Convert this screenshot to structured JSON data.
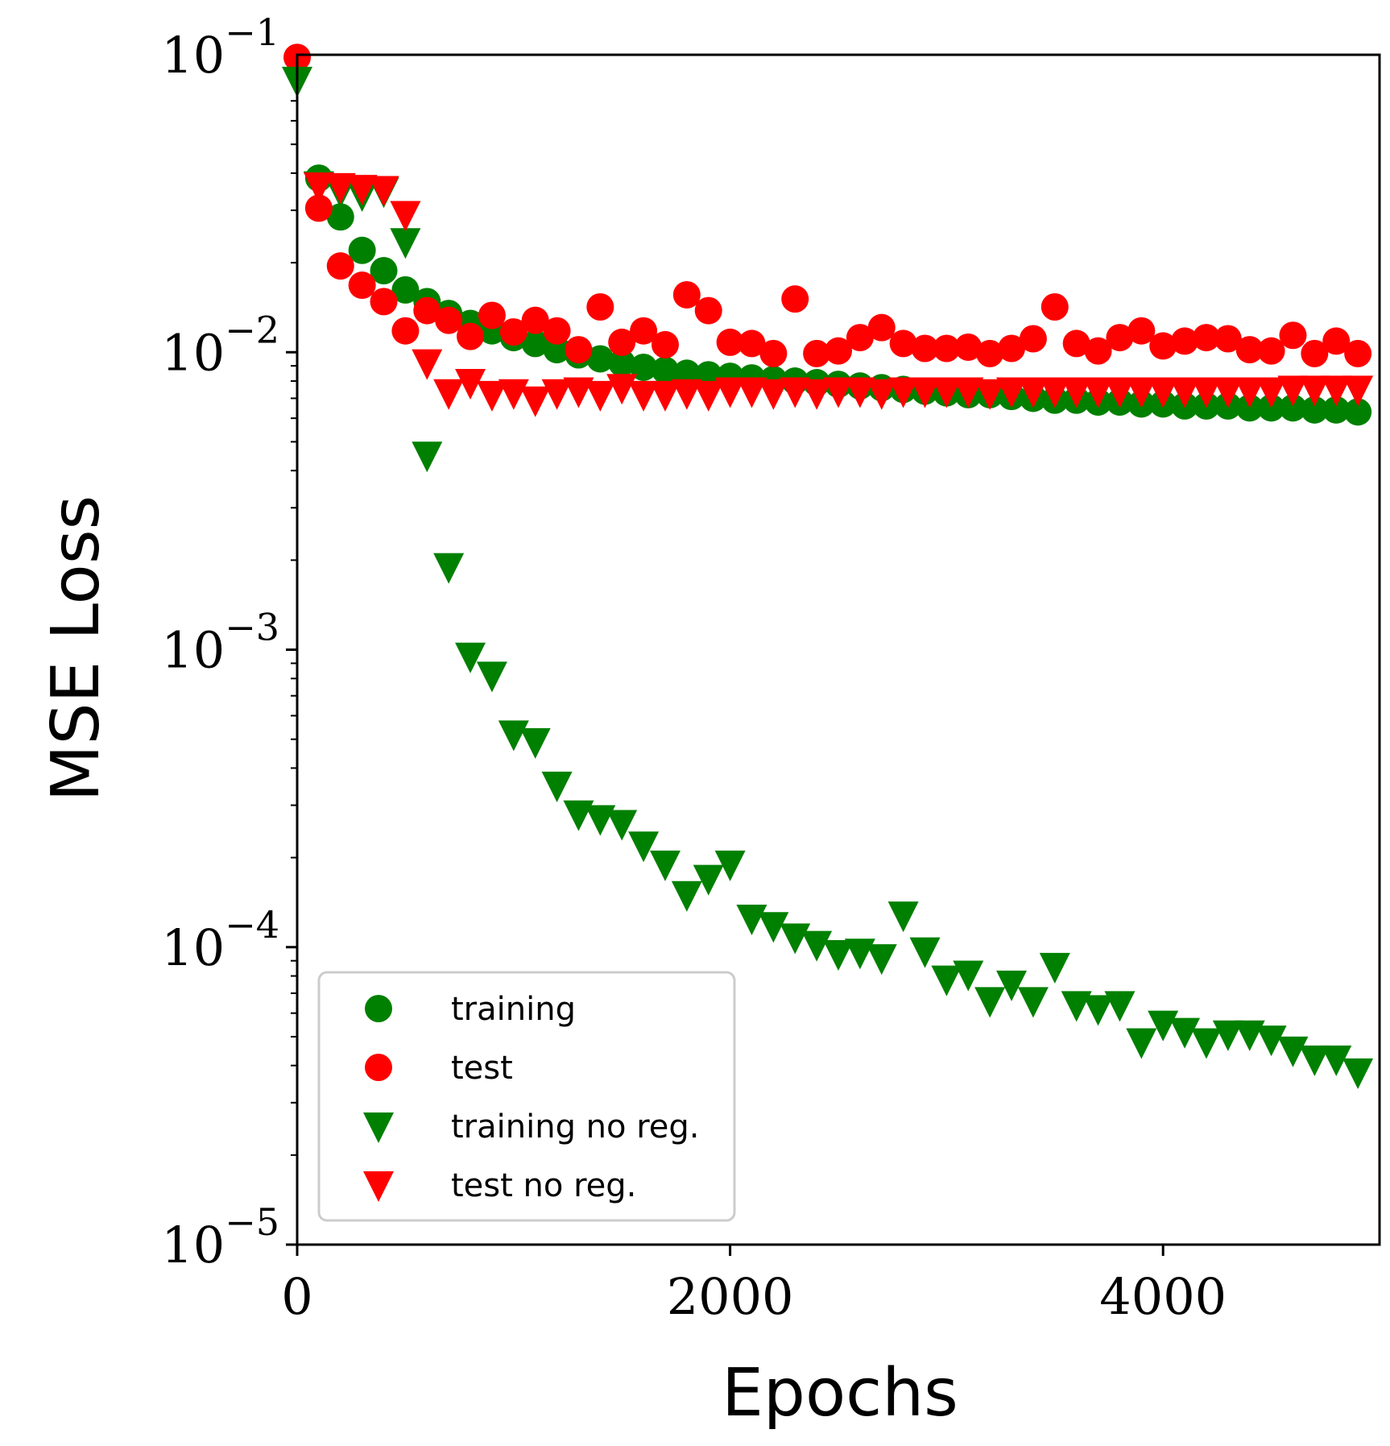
{
  "colors": {
    "green": "#008000",
    "red": "#ff0000",
    "axis": "#000000",
    "legend_border": "#cccccc"
  },
  "chart_data": {
    "type": "scatter",
    "title": "",
    "xlabel": "Epochs",
    "ylabel": "MSE Loss",
    "xlim": [
      0,
      5000
    ],
    "ylim": [
      1e-05,
      0.1
    ],
    "yscale": "log",
    "grid": false,
    "legend_position": "lower-left",
    "xticks": [
      {
        "value": 0,
        "label": "0"
      },
      {
        "value": 2000,
        "label": "2000"
      },
      {
        "value": 4000,
        "label": "4000"
      }
    ],
    "yticks": [
      {
        "value": 0.1,
        "base": "10",
        "exp": "−1"
      },
      {
        "value": 0.01,
        "base": "10",
        "exp": "−2"
      },
      {
        "value": 0.001,
        "base": "10",
        "exp": "−3"
      },
      {
        "value": 0.0001,
        "base": "10",
        "exp": "−4"
      },
      {
        "value": 1e-05,
        "base": "10",
        "exp": "−5"
      }
    ],
    "series": [
      {
        "name": "training",
        "marker": "circle",
        "color": "#008000",
        "x": [
          100,
          200,
          300,
          400,
          500,
          600,
          700,
          800,
          900,
          1000,
          1100,
          1200,
          1300,
          1400,
          1500,
          1600,
          1700,
          1800,
          1900,
          2000,
          2100,
          2200,
          2300,
          2400,
          2500,
          2600,
          2700,
          2800,
          2900,
          3000,
          3100,
          3200,
          3300,
          3400,
          3500,
          3600,
          3700,
          3800,
          3900,
          4000,
          4100,
          4200,
          4300,
          4400,
          4500,
          4600,
          4700,
          4800,
          4900
        ],
        "y": [
          0.0385,
          0.0285,
          0.022,
          0.0188,
          0.0162,
          0.0148,
          0.0135,
          0.0125,
          0.0118,
          0.0112,
          0.0107,
          0.0102,
          0.0098,
          0.0095,
          0.0092,
          0.0089,
          0.0087,
          0.0085,
          0.0084,
          0.0083,
          0.0082,
          0.0081,
          0.008,
          0.0079,
          0.0078,
          0.0077,
          0.0076,
          0.0075,
          0.0074,
          0.0073,
          0.0072,
          0.0072,
          0.0071,
          0.007,
          0.0069,
          0.0069,
          0.0068,
          0.0068,
          0.0067,
          0.0067,
          0.0066,
          0.0066,
          0.0066,
          0.0065,
          0.0065,
          0.0065,
          0.0064,
          0.0064,
          0.0063
        ]
      },
      {
        "name": "test",
        "marker": "circle",
        "color": "#ff0000",
        "x": [
          0,
          100,
          200,
          300,
          400,
          500,
          600,
          700,
          800,
          900,
          1000,
          1100,
          1200,
          1300,
          1400,
          1500,
          1600,
          1700,
          1800,
          1900,
          2000,
          2100,
          2200,
          2300,
          2400,
          2500,
          2600,
          2700,
          2800,
          2900,
          3000,
          3100,
          3200,
          3300,
          3400,
          3500,
          3600,
          3700,
          3800,
          3900,
          4000,
          4100,
          4200,
          4300,
          4400,
          4500,
          4600,
          4700,
          4800,
          4900
        ],
        "y": [
          0.098,
          0.0305,
          0.0195,
          0.0168,
          0.0148,
          0.0118,
          0.0138,
          0.0128,
          0.0113,
          0.0133,
          0.0117,
          0.0128,
          0.0118,
          0.0102,
          0.0142,
          0.0108,
          0.0118,
          0.0106,
          0.0156,
          0.0138,
          0.0108,
          0.0107,
          0.0099,
          0.0151,
          0.0099,
          0.0101,
          0.0112,
          0.0121,
          0.0107,
          0.0103,
          0.0103,
          0.0104,
          0.0099,
          0.0103,
          0.0111,
          0.0142,
          0.0107,
          0.0101,
          0.0112,
          0.0118,
          0.0105,
          0.0109,
          0.0112,
          0.0111,
          0.0102,
          0.0101,
          0.0114,
          0.0099,
          0.0109,
          0.0099
        ]
      },
      {
        "name": "training no reg.",
        "marker": "triangle-down",
        "color": "#008000",
        "x": [
          0,
          100,
          200,
          300,
          400,
          500,
          600,
          700,
          800,
          900,
          1000,
          1100,
          1200,
          1300,
          1400,
          1500,
          1600,
          1700,
          1800,
          1900,
          2000,
          2100,
          2200,
          2300,
          2400,
          2500,
          2600,
          2700,
          2800,
          2900,
          3000,
          3100,
          3200,
          3300,
          3400,
          3500,
          3600,
          3700,
          3800,
          3900,
          4000,
          4100,
          4200,
          4300,
          4400,
          4500,
          4600,
          4700,
          4800,
          4900
        ],
        "y": [
          0.082,
          0.0365,
          0.0348,
          0.0338,
          0.0348,
          0.0235,
          0.0045,
          0.0019,
          0.00095,
          0.00082,
          0.00052,
          0.00049,
          0.00035,
          0.00028,
          0.00027,
          0.00026,
          0.00022,
          0.00019,
          0.00015,
          0.00017,
          0.00019,
          0.000125,
          0.000118,
          0.000108,
          0.000102,
          9.5e-05,
          9.6e-05,
          9.2e-05,
          0.000128,
          9.7e-05,
          7.8e-05,
          8.1e-05,
          6.6e-05,
          7.5e-05,
          6.6e-05,
          8.6e-05,
          6.4e-05,
          6.2e-05,
          6.4e-05,
          4.8e-05,
          5.5e-05,
          5.2e-05,
          4.8e-05,
          5.1e-05,
          5.1e-05,
          4.9e-05,
          4.5e-05,
          4.2e-05,
          4.2e-05,
          3.8e-05
        ]
      },
      {
        "name": "test no reg.",
        "marker": "triangle-down",
        "color": "#ff0000",
        "x": [
          100,
          200,
          300,
          400,
          500,
          600,
          700,
          800,
          900,
          1000,
          1100,
          1200,
          1300,
          1400,
          1500,
          1600,
          1700,
          1800,
          1900,
          2000,
          2100,
          2200,
          2300,
          2400,
          2500,
          2600,
          2700,
          2800,
          2900,
          3000,
          3100,
          3200,
          3300,
          3400,
          3500,
          3600,
          3700,
          3800,
          3900,
          4000,
          4100,
          4200,
          4300,
          4400,
          4500,
          4600,
          4700,
          4800,
          4900
        ],
        "y": [
          0.0362,
          0.036,
          0.0355,
          0.0352,
          0.029,
          0.0092,
          0.0073,
          0.0079,
          0.0072,
          0.0073,
          0.0069,
          0.0073,
          0.0074,
          0.0072,
          0.0076,
          0.0072,
          0.0072,
          0.0073,
          0.0072,
          0.0074,
          0.0074,
          0.0073,
          0.0074,
          0.0073,
          0.0074,
          0.0074,
          0.0073,
          0.0074,
          0.0074,
          0.0074,
          0.0074,
          0.0073,
          0.0074,
          0.0074,
          0.0074,
          0.0074,
          0.0074,
          0.0074,
          0.0074,
          0.0074,
          0.0074,
          0.0074,
          0.0074,
          0.0074,
          0.0074,
          0.0075,
          0.0075,
          0.0075,
          0.0075
        ]
      }
    ]
  }
}
